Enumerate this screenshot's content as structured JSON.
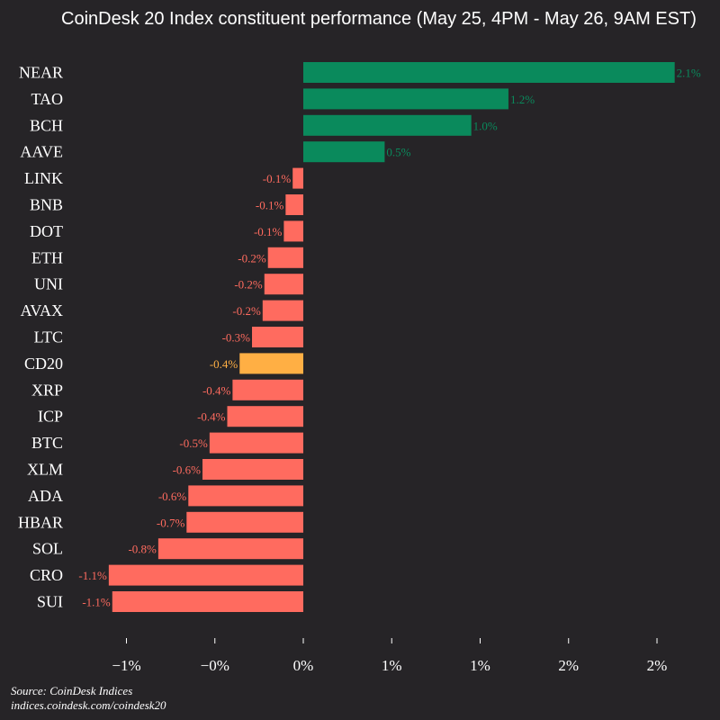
{
  "chart_data": {
    "type": "bar",
    "orientation": "horizontal",
    "title": "CoinDesk 20 Index constituent performance (May 25, 4PM - May 26, 9AM EST)",
    "categories": [
      "NEAR",
      "TAO",
      "BCH",
      "AAVE",
      "LINK",
      "BNB",
      "DOT",
      "ETH",
      "UNI",
      "AVAX",
      "LTC",
      "CD20",
      "XRP",
      "ICP",
      "BTC",
      "XLM",
      "ADA",
      "HBAR",
      "SOL",
      "CRO",
      "SUI"
    ],
    "values": [
      2.1,
      1.16,
      0.95,
      0.46,
      -0.06,
      -0.1,
      -0.11,
      -0.2,
      -0.22,
      -0.23,
      -0.29,
      -0.36,
      -0.4,
      -0.43,
      -0.53,
      -0.57,
      -0.65,
      -0.66,
      -0.82,
      -1.1,
      -1.08
    ],
    "value_labels": [
      "2.1%",
      "1.2%",
      "1.0%",
      "0.5%",
      "-0.1%",
      "-0.1%",
      "-0.1%",
      "-0.2%",
      "-0.2%",
      "-0.2%",
      "-0.3%",
      "-0.4%",
      "-0.4%",
      "-0.4%",
      "-0.5%",
      "-0.6%",
      "-0.6%",
      "-0.7%",
      "-0.8%",
      "-1.1%",
      "-1.1%"
    ],
    "highlight_category": "CD20",
    "xlim": [
      -1.25,
      2.25
    ],
    "x_ticks": [
      -1,
      -0.5,
      0,
      0.5,
      1,
      1.5,
      2
    ],
    "x_tick_labels": [
      "−1%",
      "−0%",
      "0%",
      "1%",
      "1%",
      "2%",
      "2%"
    ],
    "grid": false,
    "colors": {
      "positive": "#0a8a5c",
      "negative": "#ff6b5f",
      "highlight": "#ffaf44",
      "background": "#262427",
      "text": "#ffffff"
    }
  },
  "footer": {
    "source": "Source: CoinDesk Indices",
    "url": "indices.coindesk.com/coindesk20"
  }
}
